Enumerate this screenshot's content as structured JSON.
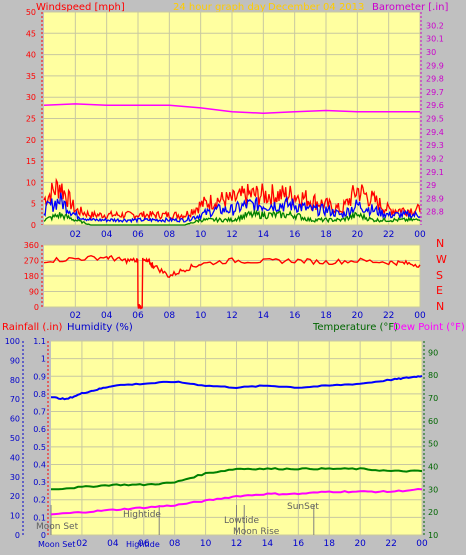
{
  "colors": {
    "background": "#c0c0c0",
    "plot_bg": "#ffffa0",
    "grid": "#c8c8a0",
    "wind_axis": "#ff0000",
    "baro_axis": "#cc00cc",
    "hum_axis": "#0000cc",
    "temp_axis": "#006600",
    "title": "#ffcc00",
    "wind_gust": "#ff0000",
    "wind_avg": "#0000ff",
    "wind_low": "#008000",
    "barometer": "#ff00ff",
    "direction": "#ff0000",
    "humidity": "#0000ff",
    "temperature": "#008000",
    "dewpoint": "#ff00ff",
    "marker": "#808080"
  },
  "header": {
    "windspeed_label": "Windspeed [mph]",
    "title": "24 hour graph day",
    "date": "December 04 2013",
    "barometer_label": "Barometer [.in]"
  },
  "direction_letters": [
    "N",
    "W",
    "S",
    "E",
    "N"
  ],
  "lower_header": {
    "rainfall_label": "Rainfall (.in)",
    "humidity_label": "Humidity (%)",
    "temperature_label": "Temperature (°F)",
    "dewpoint_label": "Dew Point (°F)"
  },
  "events": {
    "moon_set": "Moon Set",
    "hightide": "Hightide",
    "lowtide": "Lowtide",
    "moon_rise": "Moon Rise",
    "sunset": "SunSet"
  },
  "chart_data": [
    {
      "type": "line",
      "title": "24 hour graph day",
      "x_ticks": [
        "02",
        "04",
        "06",
        "08",
        "10",
        "12",
        "14",
        "16",
        "18",
        "20",
        "22",
        "00"
      ],
      "ylabel_left": "Windspeed [mph]",
      "ylim_left": [
        0,
        50
      ],
      "yticks_left": [
        0,
        5,
        10,
        15,
        20,
        25,
        30,
        35,
        40,
        45,
        50
      ],
      "ylabel_right": "Barometer [.in]",
      "ylim_right": [
        28.7,
        30.3
      ],
      "yticks_right": [
        "28.8",
        "28.9",
        "29",
        "29.1",
        "29.2",
        "29.3",
        "29.4",
        "29.5",
        "29.6",
        "29.7",
        "29.8",
        "29.9",
        "30",
        "30.1",
        "30.2"
      ],
      "grid": true,
      "series": [
        {
          "name": "gust",
          "axis": "left",
          "x": [
            0,
            1,
            2,
            3,
            4,
            5,
            6,
            7,
            8,
            9,
            10,
            11,
            12,
            13,
            14,
            15,
            16,
            17,
            18,
            19,
            20,
            21,
            22,
            23,
            24
          ],
          "values": [
            5,
            8,
            3,
            2,
            2,
            2,
            2,
            2,
            2,
            2,
            4,
            5,
            5,
            6,
            6,
            6,
            6,
            5,
            4,
            3,
            7,
            5,
            3,
            3,
            3
          ]
        },
        {
          "name": "average",
          "axis": "left",
          "x": [
            0,
            1,
            2,
            3,
            4,
            5,
            6,
            7,
            8,
            9,
            10,
            11,
            12,
            13,
            14,
            15,
            16,
            17,
            18,
            19,
            20,
            21,
            22,
            23,
            24
          ],
          "values": [
            3,
            5,
            2,
            1,
            1,
            1,
            1,
            1,
            1,
            1,
            2,
            3,
            3,
            4,
            4,
            4,
            4,
            3,
            3,
            2,
            4,
            3,
            2,
            2,
            2
          ]
        },
        {
          "name": "low",
          "axis": "left",
          "x": [
            0,
            1,
            2,
            3,
            4,
            5,
            6,
            7,
            8,
            9,
            10,
            11,
            12,
            13,
            14,
            15,
            16,
            17,
            18,
            19,
            20,
            21,
            22,
            23,
            24
          ],
          "values": [
            1,
            2,
            1,
            0,
            0,
            0,
            0,
            0,
            0,
            0,
            1,
            1,
            1,
            2,
            2,
            2,
            2,
            1,
            1,
            1,
            2,
            1,
            1,
            1,
            1
          ]
        },
        {
          "name": "barometer",
          "axis": "right",
          "x": [
            0,
            2,
            4,
            6,
            8,
            10,
            12,
            14,
            16,
            18,
            20,
            22,
            24
          ],
          "values": [
            29.6,
            29.61,
            29.6,
            29.6,
            29.6,
            29.58,
            29.55,
            29.54,
            29.55,
            29.56,
            29.55,
            29.55,
            29.55
          ]
        }
      ]
    },
    {
      "type": "line",
      "ylabel_left": "",
      "ylim": [
        0,
        360
      ],
      "yticks": [
        0,
        90,
        180,
        270,
        360
      ],
      "right_labels": [
        "N",
        "W",
        "S",
        "E",
        "N"
      ],
      "x_ticks": [
        "02",
        "04",
        "06",
        "08",
        "10",
        "12",
        "14",
        "16",
        "18",
        "20",
        "22",
        "00"
      ],
      "series": [
        {
          "name": "direction",
          "x": [
            0,
            2,
            4,
            5,
            5.9,
            6,
            6.3,
            6.7,
            7,
            8,
            9,
            10,
            12,
            14,
            16,
            18,
            20,
            22,
            23,
            24
          ],
          "values": [
            270,
            280,
            290,
            270,
            270,
            5,
            270,
            260,
            240,
            180,
            220,
            250,
            270,
            265,
            270,
            260,
            270,
            260,
            255,
            245
          ]
        }
      ]
    },
    {
      "type": "line",
      "x_ticks": [
        "02",
        "04",
        "06",
        "08",
        "10",
        "12",
        "14",
        "16",
        "18",
        "20",
        "22",
        "00"
      ],
      "ylabel_left_rain": "Rainfall (.in)",
      "ylim_rain": [
        0,
        1.1
      ],
      "yticks_rain": [
        "0",
        "0.1",
        "0.2",
        "0.3",
        "0.4",
        "0.5",
        "0.6",
        "0.7",
        "0.8",
        "0.9",
        "1",
        "1.1"
      ],
      "ylabel_left_humidity": "Humidity (%)",
      "ylim_humidity": [
        0,
        100
      ],
      "yticks_humidity": [
        0,
        10,
        20,
        30,
        40,
        50,
        60,
        70,
        80,
        90,
        100
      ],
      "ylabel_right": "Temperature (°F)",
      "ylim_right": [
        10,
        95
      ],
      "yticks_right": [
        10,
        20,
        30,
        40,
        50,
        60,
        70,
        80,
        90
      ],
      "series": [
        {
          "name": "Humidity",
          "axis": "humidity",
          "x": [
            0,
            1,
            2,
            3,
            4,
            6,
            8,
            10,
            12,
            14,
            16,
            18,
            20,
            22,
            23,
            24
          ],
          "values": [
            71,
            70,
            73,
            75,
            77,
            78,
            79,
            77,
            76,
            77,
            76,
            77,
            78,
            80,
            81,
            82
          ]
        },
        {
          "name": "Temperature",
          "axis": "right",
          "x": [
            0,
            2,
            4,
            6,
            8,
            10,
            12,
            14,
            16,
            18,
            20,
            22,
            24
          ],
          "values": [
            30,
            31,
            32,
            32,
            33,
            37,
            39,
            39,
            39,
            39,
            39,
            38,
            38
          ]
        },
        {
          "name": "Dew Point",
          "axis": "right",
          "x": [
            0,
            2,
            4,
            6,
            8,
            10,
            12,
            14,
            16,
            18,
            20,
            22,
            24
          ],
          "values": [
            19,
            20,
            21,
            22,
            23,
            25,
            27,
            28,
            28,
            29,
            29,
            29,
            30
          ]
        }
      ],
      "events": [
        {
          "label": "Moon Set",
          "x": 0
        },
        {
          "label": "Hightide",
          "x": 7
        },
        {
          "label": "Lowtide",
          "x": 12
        },
        {
          "label": "Moon Rise",
          "x": 12.5
        },
        {
          "label": "SunSet",
          "x": 17
        }
      ]
    }
  ]
}
